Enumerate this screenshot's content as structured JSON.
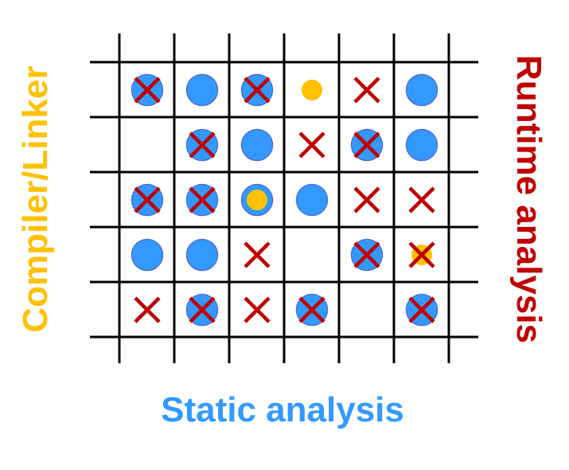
{
  "labels": {
    "left": "Compiler/Linker",
    "right": "Runtime analysis",
    "bottom": "Static analysis"
  },
  "colors": {
    "compiler": "#FFC000",
    "runtime": "#C00000",
    "static": "#3399FF",
    "static_border": "#4F6FD6",
    "grid": "#000000"
  },
  "legend_note": "",
  "grid": {
    "rows": [
      [
        [
          "static",
          "runtime"
        ],
        [
          "static"
        ],
        [
          "static",
          "runtime"
        ],
        [
          "compiler"
        ],
        [
          "runtime"
        ],
        [
          "static"
        ]
      ],
      [
        [],
        [
          "static",
          "runtime"
        ],
        [
          "static"
        ],
        [
          "runtime"
        ],
        [
          "static",
          "runtime"
        ],
        [
          "static"
        ]
      ],
      [
        [
          "static",
          "runtime"
        ],
        [
          "static",
          "runtime"
        ],
        [
          "static",
          "compiler"
        ],
        [
          "static"
        ],
        [
          "runtime"
        ],
        [
          "runtime"
        ]
      ],
      [
        [
          "static"
        ],
        [
          "static"
        ],
        [
          "runtime"
        ],
        [],
        [
          "static",
          "runtime"
        ],
        [
          "compiler",
          "runtime"
        ]
      ],
      [
        [
          "runtime"
        ],
        [
          "static",
          "runtime"
        ],
        [
          "runtime"
        ],
        [
          "static",
          "runtime"
        ],
        [],
        [
          "static",
          "runtime"
        ]
      ]
    ]
  }
}
